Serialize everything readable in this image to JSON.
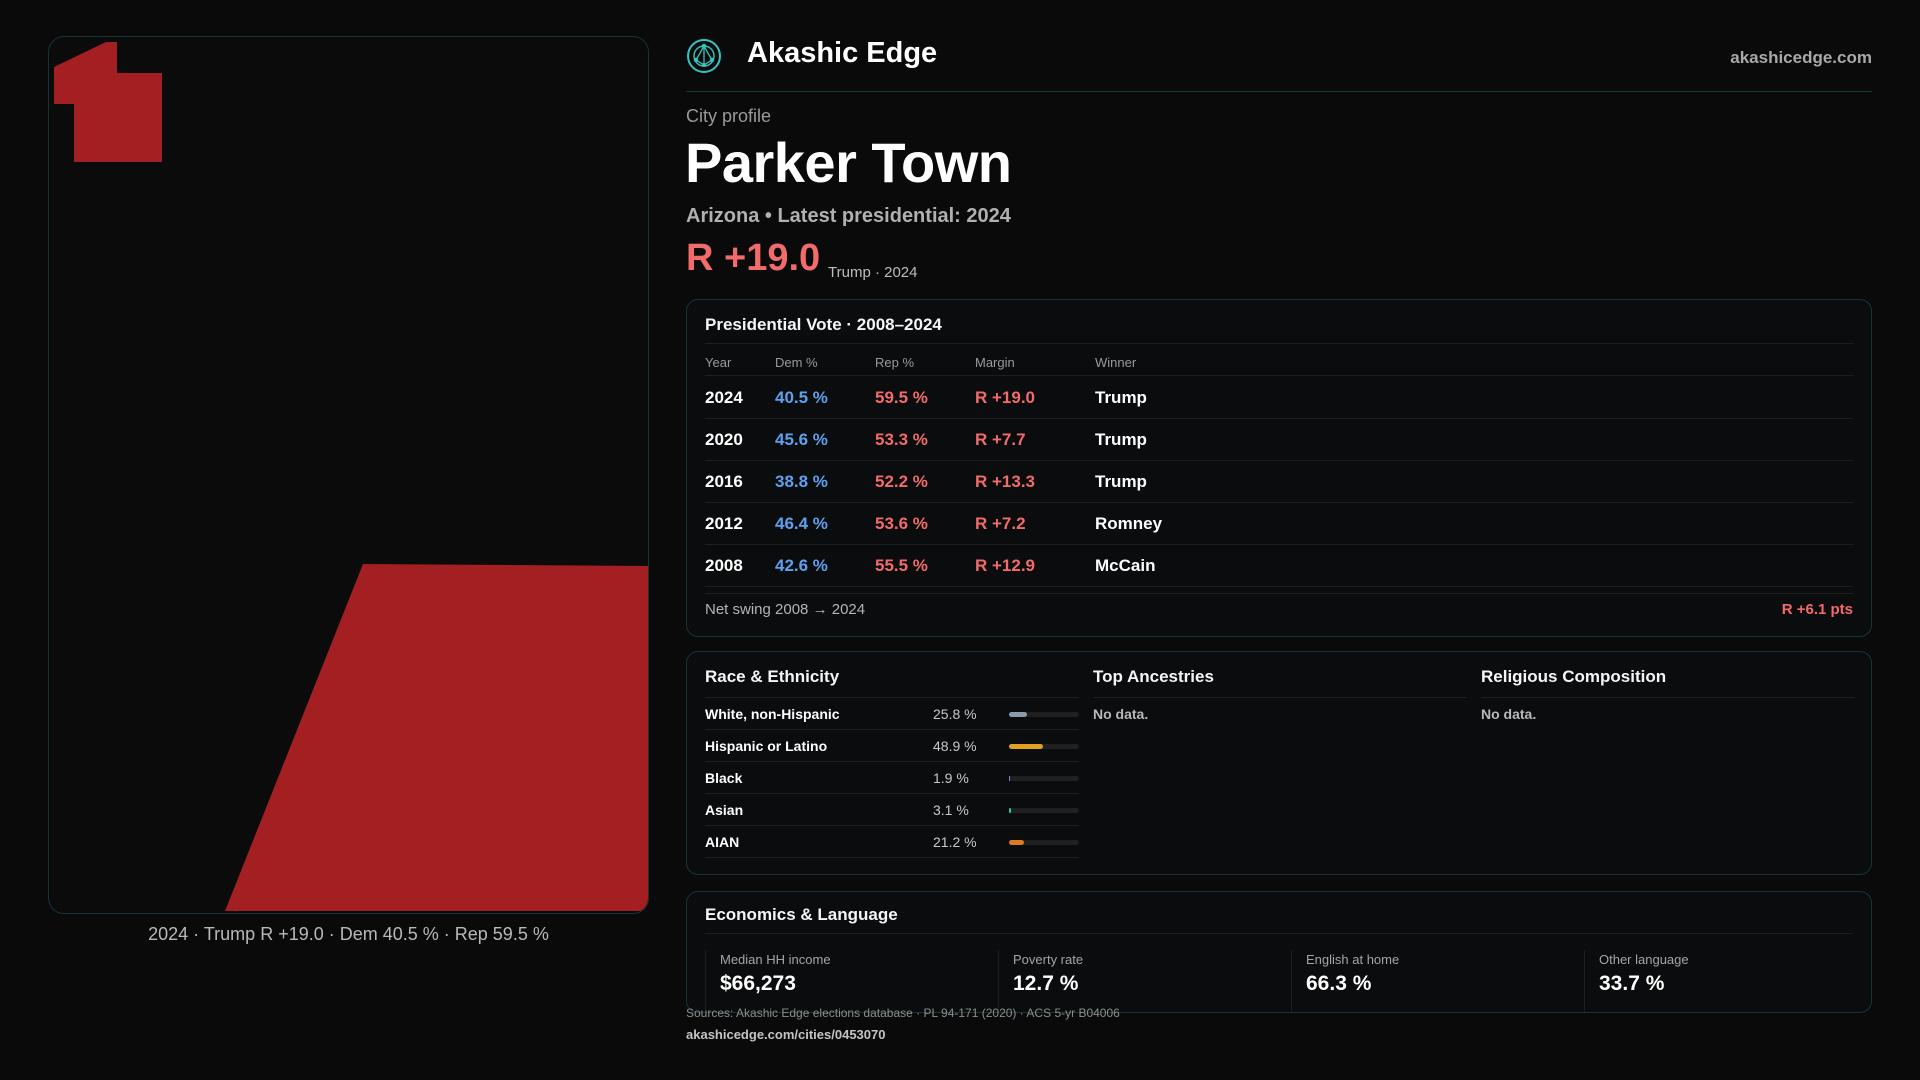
{
  "brand": {
    "name": "Akashic Edge",
    "domain": "akashicedge.com",
    "logo_icon": "network-globe-icon"
  },
  "profile": {
    "eyebrow": "City profile",
    "city": "Parker Town",
    "subtitle": "Arizona • Latest presidential: 2024",
    "margin": "R +19.0",
    "margin_note": "Trump · 2024"
  },
  "map": {
    "caption": "2024 · Trump R +19.0 · Dem 40.5 % · Rep 59.5 %",
    "fill_color": "#a31f22"
  },
  "vote": {
    "title": "Presidential Vote · 2008–2024",
    "headers": {
      "year": "Year",
      "dem": "Dem %",
      "rep": "Rep %",
      "margin": "Margin",
      "winner": "Winner"
    },
    "rows": [
      {
        "year": "2024",
        "dem": "40.5 %",
        "rep": "59.5 %",
        "margin": "R +19.0",
        "winner": "Trump"
      },
      {
        "year": "2020",
        "dem": "45.6 %",
        "rep": "53.3 %",
        "margin": "R +7.7",
        "winner": "Trump"
      },
      {
        "year": "2016",
        "dem": "38.8 %",
        "rep": "52.2 %",
        "margin": "R +13.3",
        "winner": "Trump"
      },
      {
        "year": "2012",
        "dem": "46.4 %",
        "rep": "53.6 %",
        "margin": "R +7.2",
        "winner": "Romney"
      },
      {
        "year": "2008",
        "dem": "42.6 %",
        "rep": "55.5 %",
        "margin": "R +12.9",
        "winner": "McCain"
      }
    ],
    "net_swing_label": "Net swing 2008 → 2024",
    "net_swing_value": "R +6.1 pts"
  },
  "race": {
    "title": "Race & Ethnicity",
    "rows": [
      {
        "label": "White, non-Hispanic",
        "value": "25.8 %",
        "fraction": 0.258,
        "color": "#8a9bb0"
      },
      {
        "label": "Hispanic or Latino",
        "value": "48.9 %",
        "fraction": 0.489,
        "color": "#e0a020"
      },
      {
        "label": "Black",
        "value": "1.9 %",
        "fraction": 0.019,
        "color": "#8f78d8"
      },
      {
        "label": "Asian",
        "value": "3.1 %",
        "fraction": 0.031,
        "color": "#2ebfa5"
      },
      {
        "label": "AIAN",
        "value": "21.2 %",
        "fraction": 0.212,
        "color": "#e07a1e"
      }
    ]
  },
  "ancestries": {
    "title": "Top Ancestries",
    "empty": "No data."
  },
  "religion": {
    "title": "Religious Composition",
    "empty": "No data."
  },
  "economics": {
    "title": "Economics & Language",
    "stats": [
      {
        "label": "Median HH income",
        "value": "$66,273"
      },
      {
        "label": "Poverty rate",
        "value": "12.7 %"
      },
      {
        "label": "English at home",
        "value": "66.3 %"
      },
      {
        "label": "Other language",
        "value": "33.7 %"
      }
    ]
  },
  "footer": {
    "sources": "Sources: Akashic Edge elections database · PL 94-171 (2020) · ACS 5-yr B04006",
    "url": "akashicedge.com/cities/0453070"
  }
}
